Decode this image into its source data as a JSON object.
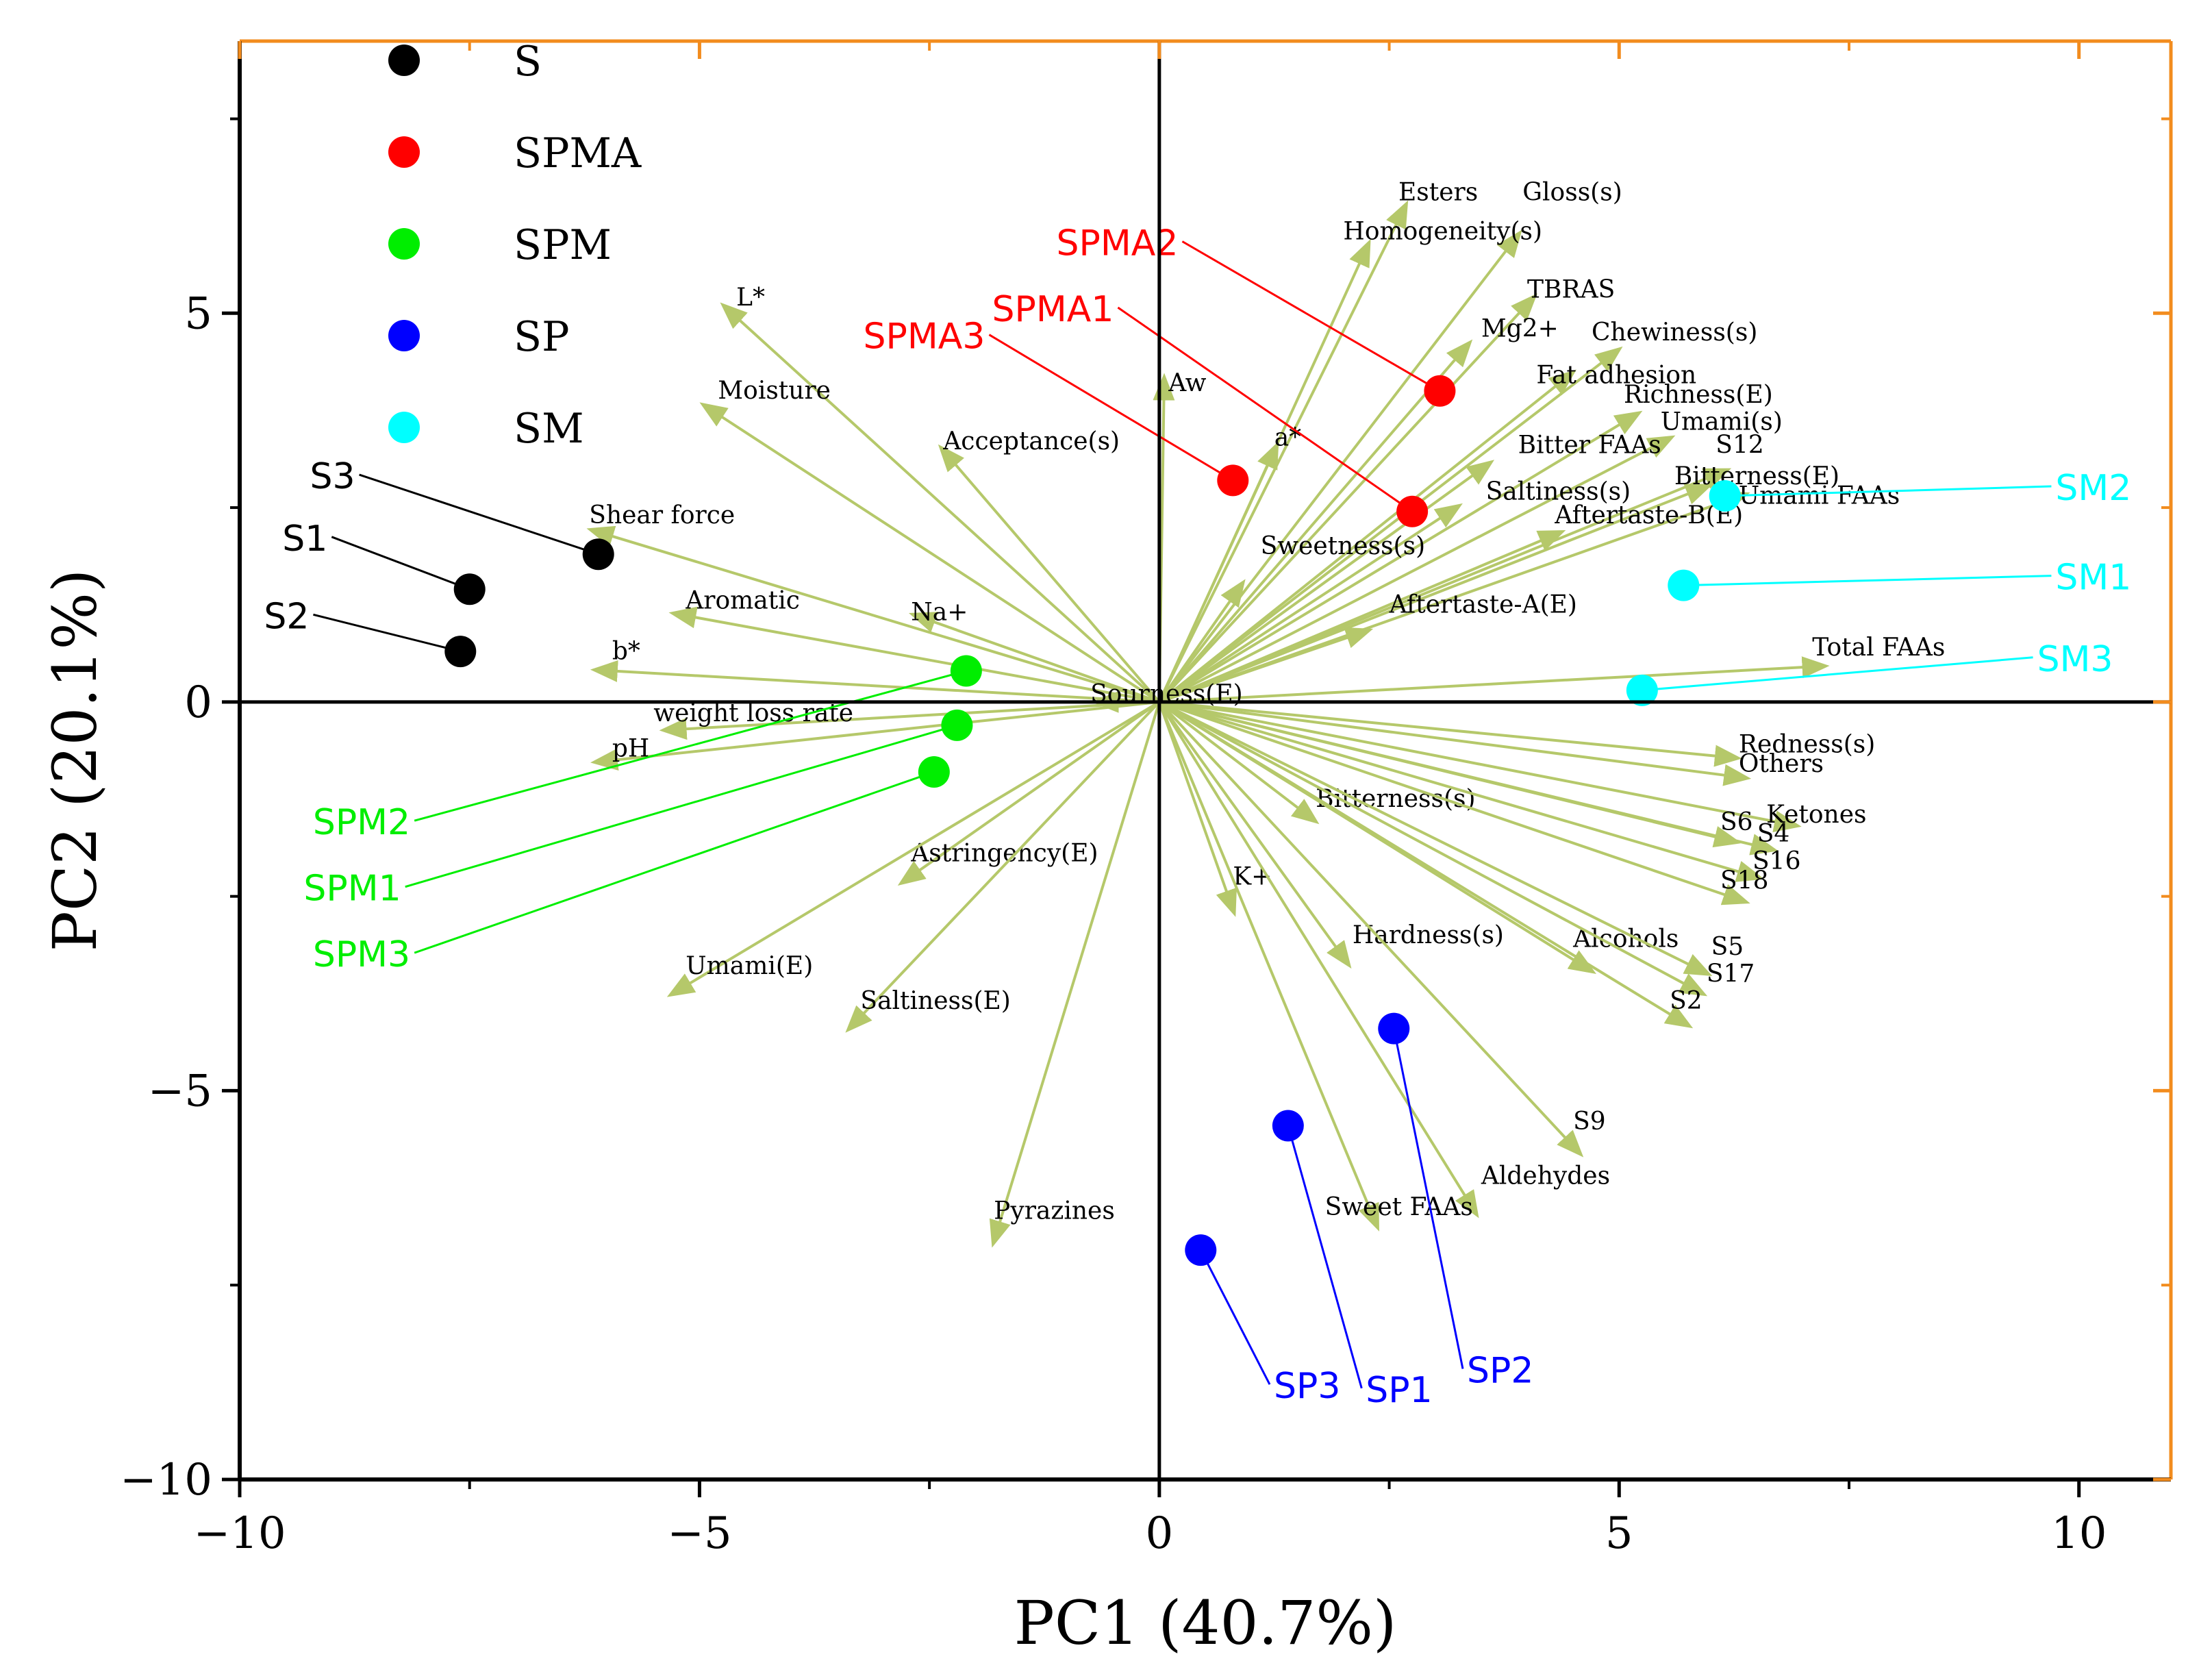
{
  "chart_data": {
    "type": "scatter",
    "subtype": "pca-biplot",
    "xlabel": "PC1 (40.7%)",
    "ylabel": "PC2 (20.1%)",
    "xlim": [
      -10,
      11
    ],
    "ylim": [
      -10,
      8.5
    ],
    "xticks": [
      -10,
      -5,
      0,
      5,
      10
    ],
    "yticks": [
      -10,
      -5,
      0,
      5
    ],
    "xtick_labels": [
      "−10",
      "−5",
      "0",
      "5",
      "10"
    ],
    "ytick_labels": [
      "−10",
      "−5",
      "0",
      "5"
    ],
    "legend_position": "top-left",
    "colors": {
      "vector": "#b5c86a",
      "frame_accent": "#f28c1e",
      "S": "#000000",
      "SPMA": "#ff0000",
      "SPM": "#00ee00",
      "SP": "#0000ff",
      "SM": "#00ffff"
    },
    "groups": [
      {
        "name": "S",
        "color": "#000000",
        "label_color": "#000000",
        "points": [
          {
            "label": "S3",
            "x": -6.1,
            "y": 1.9,
            "lx": -8.7,
            "ly": 2.8
          },
          {
            "label": "S1",
            "x": -7.5,
            "y": 1.45,
            "lx": -9.0,
            "ly": 2.0
          },
          {
            "label": "S2",
            "x": -7.6,
            "y": 0.65,
            "lx": -9.2,
            "ly": 1.0
          }
        ]
      },
      {
        "name": "SPMA",
        "color": "#ff0000",
        "label_color": "#ff0000",
        "points": [
          {
            "label": "SPMA2",
            "x": 3.05,
            "y": 4.0,
            "lx": 0.25,
            "ly": 5.8
          },
          {
            "label": "SPMA1",
            "x": 2.75,
            "y": 2.45,
            "lx": -0.45,
            "ly": 4.95
          },
          {
            "label": "SPMA3",
            "x": 0.8,
            "y": 2.85,
            "lx": -1.85,
            "ly": 4.6
          }
        ]
      },
      {
        "name": "SPM",
        "color": "#00ee00",
        "label_color": "#00ee00",
        "points": [
          {
            "label": "SPM2",
            "x": -2.1,
            "y": 0.4,
            "lx": -8.1,
            "ly": -1.65
          },
          {
            "label": "SPM1",
            "x": -2.2,
            "y": -0.3,
            "lx": -8.2,
            "ly": -2.5
          },
          {
            "label": "SPM3",
            "x": -2.45,
            "y": -0.9,
            "lx": -8.1,
            "ly": -3.35
          }
        ]
      },
      {
        "name": "SP",
        "color": "#0000ff",
        "label_color": "#0000ff",
        "points": [
          {
            "label": "SP3",
            "x": 0.45,
            "y": -7.05,
            "lx": 1.2,
            "ly": -8.9
          },
          {
            "label": "SP1",
            "x": 1.4,
            "y": -5.45,
            "lx": 2.2,
            "ly": -8.95
          },
          {
            "label": "SP2",
            "x": 2.55,
            "y": -4.2,
            "lx": 3.3,
            "ly": -8.7
          }
        ]
      },
      {
        "name": "SM",
        "color": "#00ffff",
        "label_color": "#00ffff",
        "points": [
          {
            "label": "SM2",
            "x": 6.15,
            "y": 2.65,
            "lx": 9.7,
            "ly": 2.65
          },
          {
            "label": "SM1",
            "x": 5.7,
            "y": 1.5,
            "lx": 9.7,
            "ly": 1.5
          },
          {
            "label": "SM3",
            "x": 5.25,
            "y": 0.15,
            "lx": 9.5,
            "ly": 0.45
          }
        ]
      }
    ],
    "loadings": [
      {
        "label": "Esters",
        "x": 2.6,
        "y": 6.2,
        "lx": 2.6,
        "ly": 6.45
      },
      {
        "label": "Gloss(s)",
        "x": 3.8,
        "y": 5.85,
        "lx": 3.95,
        "ly": 6.45
      },
      {
        "label": "Homogeneity(s)",
        "x": 2.2,
        "y": 5.7,
        "lx": 2.0,
        "ly": 5.95
      },
      {
        "label": "TBRAS",
        "x": 3.95,
        "y": 5.05,
        "lx": 4.0,
        "ly": 5.2
      },
      {
        "label": "Mg2+",
        "x": 3.25,
        "y": 4.45,
        "lx": 3.5,
        "ly": 4.7
      },
      {
        "label": "Chewiness(s)",
        "x": 4.85,
        "y": 4.4,
        "lx": 4.7,
        "ly": 4.65
      },
      {
        "label": "Fat adhesion",
        "x": 4.35,
        "y": 4.1,
        "lx": 4.1,
        "ly": 4.1
      },
      {
        "label": "L*",
        "x": -4.6,
        "y": 4.95,
        "lx": -4.6,
        "ly": 5.1
      },
      {
        "label": "Aw",
        "x": 0.05,
        "y": 3.95,
        "lx": 0.1,
        "ly": 4.0
      },
      {
        "label": "Moisture",
        "x": -4.8,
        "y": 3.7,
        "lx": -4.8,
        "ly": 3.9
      },
      {
        "label": "Richness(E)",
        "x": 5.05,
        "y": 3.6,
        "lx": 5.05,
        "ly": 3.85
      },
      {
        "label": "Umami(s)",
        "x": 5.4,
        "y": 3.3,
        "lx": 5.45,
        "ly": 3.5
      },
      {
        "label": "a*",
        "x": 1.2,
        "y": 3.1,
        "lx": 1.25,
        "ly": 3.3
      },
      {
        "label": "Acceptance(s)",
        "x": -2.25,
        "y": 3.1,
        "lx": -2.35,
        "ly": 3.25
      },
      {
        "label": "Bitter FAAs",
        "x": 3.45,
        "y": 2.95,
        "lx": 3.9,
        "ly": 3.2
      },
      {
        "label": "S12",
        "x": 6.0,
        "y": 2.9,
        "lx": 6.05,
        "ly": 3.2
      },
      {
        "label": "Bitterness(E)",
        "x": 5.8,
        "y": 2.7,
        "lx": 5.6,
        "ly": 2.8
      },
      {
        "label": "Saltiness(s)",
        "x": 3.1,
        "y": 2.4,
        "lx": 3.55,
        "ly": 2.6
      },
      {
        "label": "Umami FAAs",
        "x": 6.2,
        "y": 2.6,
        "lx": 6.3,
        "ly": 2.55
      },
      {
        "label": "Aftertaste-B(E)",
        "x": 4.2,
        "y": 2.1,
        "lx": 4.3,
        "ly": 2.3
      },
      {
        "label": "Shear force",
        "x": -6.0,
        "y": 2.15,
        "lx": -6.2,
        "ly": 2.3
      },
      {
        "label": "Sweetness(s)",
        "x": 0.8,
        "y": 1.35,
        "lx": 1.1,
        "ly": 1.9
      },
      {
        "label": "Aftertaste-A(E)",
        "x": 2.1,
        "y": 0.85,
        "lx": 2.5,
        "ly": 1.15
      },
      {
        "label": "Aromatic",
        "x": -5.1,
        "y": 1.1,
        "lx": -5.15,
        "ly": 1.2
      },
      {
        "label": "Na+",
        "x": -2.5,
        "y": 1.05,
        "lx": -2.7,
        "ly": 1.05
      },
      {
        "label": "Total FAAs",
        "x": 7.05,
        "y": 0.45,
        "lx": 7.1,
        "ly": 0.6
      },
      {
        "label": "b*",
        "x": -5.95,
        "y": 0.4,
        "lx": -5.95,
        "ly": 0.55
      },
      {
        "label": "Sourness(E)",
        "x": -0.5,
        "y": 0.0,
        "lx": -0.75,
        "ly": 0.0
      },
      {
        "label": "weight loss rate",
        "x": -5.2,
        "y": -0.35,
        "lx": -5.5,
        "ly": -0.25
      },
      {
        "label": "pH",
        "x": -5.95,
        "y": -0.75,
        "lx": -5.95,
        "ly": -0.7
      },
      {
        "label": "Redness(s)",
        "x": 6.1,
        "y": -0.7,
        "lx": 6.3,
        "ly": -0.65
      },
      {
        "label": "Others",
        "x": 6.2,
        "y": -0.95,
        "lx": 6.3,
        "ly": -0.9
      },
      {
        "label": "Bitterness(s)",
        "x": 1.55,
        "y": -1.4,
        "lx": 1.7,
        "ly": -1.35
      },
      {
        "label": "Ketones",
        "x": 6.75,
        "y": -1.55,
        "lx": 6.6,
        "ly": -1.55
      },
      {
        "label": "S6",
        "x": 6.1,
        "y": -1.75,
        "lx": 6.1,
        "ly": -1.65
      },
      {
        "label": "S4",
        "x": 6.5,
        "y": -1.85,
        "lx": 6.5,
        "ly": -1.8
      },
      {
        "label": "S16",
        "x": 6.35,
        "y": -2.2,
        "lx": 6.45,
        "ly": -2.15
      },
      {
        "label": "S18",
        "x": 6.2,
        "y": -2.5,
        "lx": 6.1,
        "ly": -2.4
      },
      {
        "label": "Astringency(E)",
        "x": -2.65,
        "y": -2.2,
        "lx": -2.7,
        "ly": -2.05
      },
      {
        "label": "K+",
        "x": 0.75,
        "y": -2.5,
        "lx": 0.8,
        "ly": -2.35
      },
      {
        "label": "Hardness(s)",
        "x": 1.95,
        "y": -3.2,
        "lx": 2.1,
        "ly": -3.1
      },
      {
        "label": "Alcohols",
        "x": 4.55,
        "y": -3.35,
        "lx": 4.5,
        "ly": -3.15
      },
      {
        "label": "S5",
        "x": 5.8,
        "y": -3.4,
        "lx": 6.0,
        "ly": -3.25
      },
      {
        "label": "S17",
        "x": 5.75,
        "y": -3.65,
        "lx": 5.95,
        "ly": -3.6
      },
      {
        "label": "S2",
        "x": 5.6,
        "y": -4.05,
        "lx": 5.55,
        "ly": -3.95
      },
      {
        "label": "Umami(E)",
        "x": -5.15,
        "y": -3.65,
        "lx": -5.15,
        "ly": -3.5
      },
      {
        "label": "Saltiness(E)",
        "x": -3.25,
        "y": -4.05,
        "lx": -3.25,
        "ly": -3.95
      },
      {
        "label": "S9",
        "x": 4.45,
        "y": -5.65,
        "lx": 4.5,
        "ly": -5.5
      },
      {
        "label": "Aldehydes",
        "x": 3.35,
        "y": -6.4,
        "lx": 3.5,
        "ly": -6.2
      },
      {
        "label": "Sweet FAAs",
        "x": 2.3,
        "y": -6.55,
        "lx": 1.8,
        "ly": -6.6
      },
      {
        "label": "Pyrazines",
        "x": -1.75,
        "y": -6.75,
        "lx": -1.8,
        "ly": -6.65
      }
    ]
  }
}
